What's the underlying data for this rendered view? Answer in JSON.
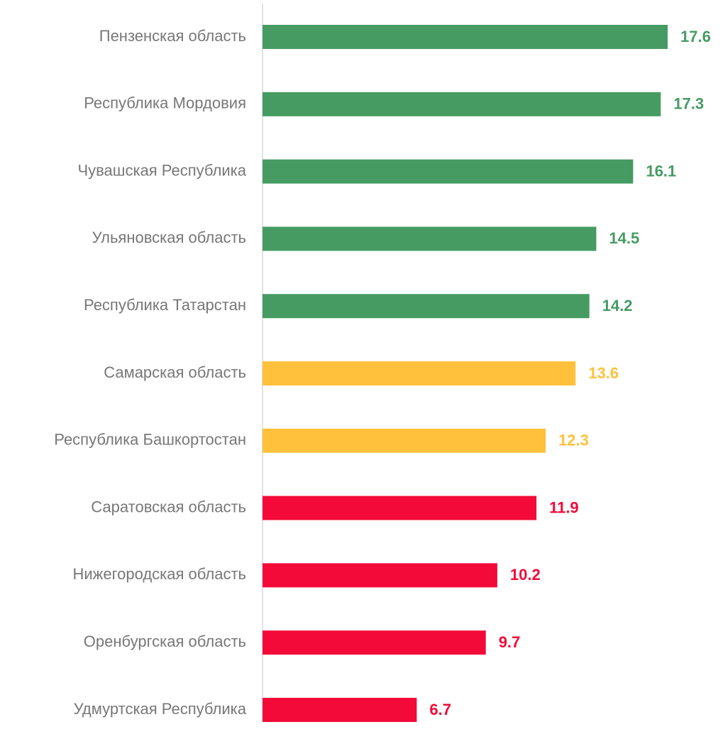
{
  "chart_data": {
    "type": "barh",
    "categories": [
      "Пензенская область",
      "Республика Мордовия",
      "Чувашская Республика",
      "Ульяновская область",
      "Республика Татарстан",
      "Самарская область",
      "Республика Башкортостан",
      "Саратовская область",
      "Нижегородская область",
      "Оренбургская область",
      "Удмуртская Республика"
    ],
    "values": [
      17.6,
      17.3,
      16.1,
      14.5,
      14.2,
      13.6,
      12.3,
      11.9,
      10.2,
      9.7,
      6.7
    ],
    "colors": [
      "#469b63",
      "#469b63",
      "#469b63",
      "#469b63",
      "#469b63",
      "#ffc13b",
      "#ffc13b",
      "#f30a38",
      "#f30a38",
      "#f30a38",
      "#f30a38"
    ]
  }
}
